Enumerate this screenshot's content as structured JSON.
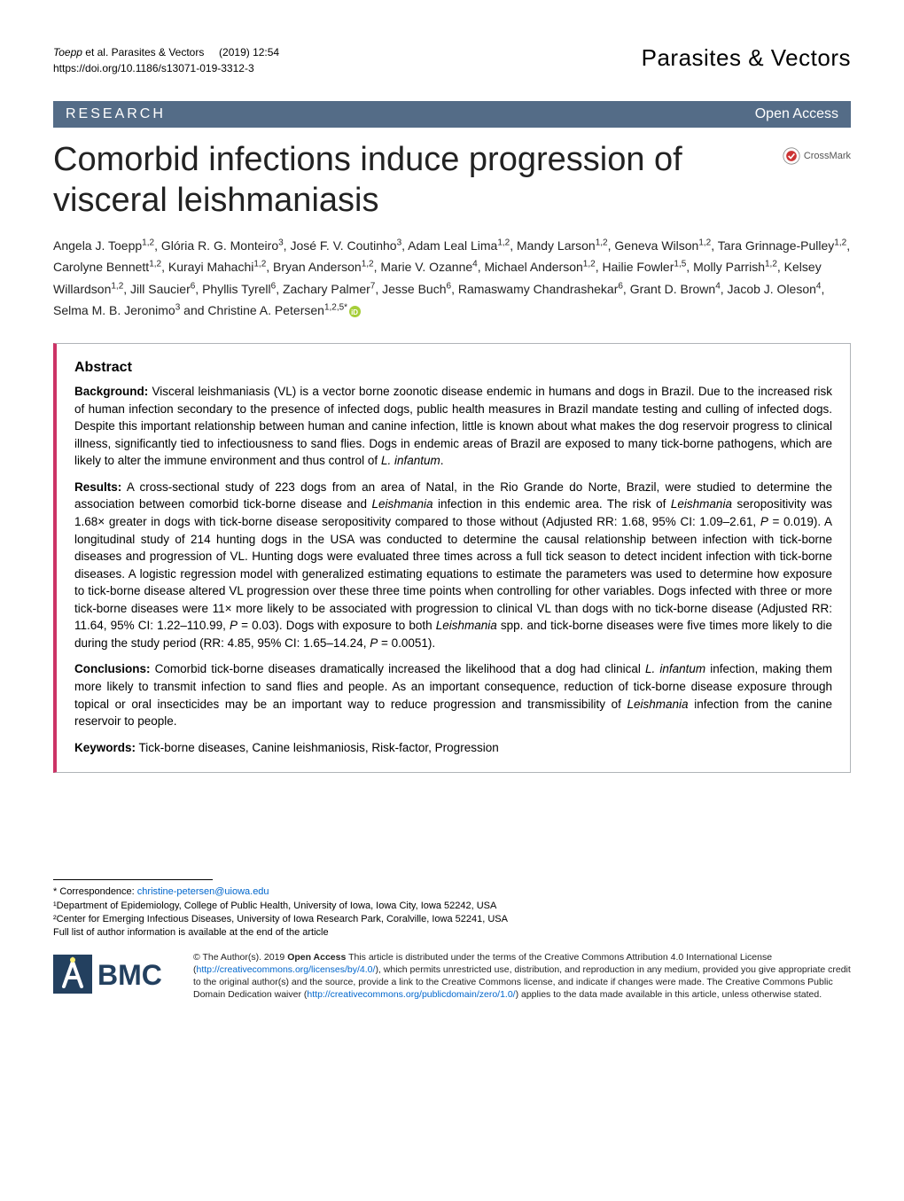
{
  "header": {
    "citation_authors": "Toepp",
    "citation_etal": "et al. Parasites & Vectors",
    "citation_year_vol": "(2019) 12:54",
    "doi": "https://doi.org/10.1186/s13071-019-3312-3",
    "journal": "Parasites & Vectors"
  },
  "banner": {
    "left": "RESEARCH",
    "right": "Open Access"
  },
  "title": "Comorbid infections induce progression of visceral leishmaniasis",
  "crossmark": "CrossMark",
  "authors_html": "Angela J. Toepp<sup>1,2</sup>, Glória R. G. Monteiro<sup>3</sup>, José F. V. Coutinho<sup>3</sup>, Adam Leal Lima<sup>1,2</sup>, Mandy Larson<sup>1,2</sup>, Geneva Wilson<sup>1,2</sup>, Tara Grinnage-Pulley<sup>1,2</sup>, Carolyne Bennett<sup>1,2</sup>, Kurayi Mahachi<sup>1,2</sup>, Bryan Anderson<sup>1,2</sup>, Marie V. Ozanne<sup>4</sup>, Michael Anderson<sup>1,2</sup>, Hailie Fowler<sup>1,5</sup>, Molly Parrish<sup>1,2</sup>, Kelsey Willardson<sup>1,2</sup>, Jill Saucier<sup>6</sup>, Phyllis Tyrell<sup>6</sup>, Zachary Palmer<sup>7</sup>, Jesse Buch<sup>6</sup>, Ramaswamy Chandrashekar<sup>6</sup>, Grant D. Brown<sup>4</sup>, Jacob J. Oleson<sup>4</sup>, Selma M. B. Jeronimo<sup>3</sup> and Christine A. Petersen<sup>1,2,5*</sup>",
  "abstract": {
    "heading": "Abstract",
    "background_label": "Background:",
    "background": "Visceral leishmaniasis (VL) is a vector borne zoonotic disease endemic in humans and dogs in Brazil. Due to the increased risk of human infection secondary to the presence of infected dogs, public health measures in Brazil mandate testing and culling of infected dogs. Despite this important relationship between human and canine infection, little is known about what makes the dog reservoir progress to clinical illness, significantly tied to infectiousness to sand flies. Dogs in endemic areas of Brazil are exposed to many tick-borne pathogens, which are likely to alter the immune environment and thus control of <em>L. infantum</em>.",
    "results_label": "Results:",
    "results": "A cross-sectional study of 223 dogs from an area of Natal, in the Rio Grande do Norte, Brazil, were studied to determine the association between comorbid tick-borne disease and <em>Leishmania</em> infection in this endemic area. The risk of <em>Leishmania</em> seropositivity was 1.68× greater in dogs with tick-borne disease seropositivity compared to those without (Adjusted RR: 1.68, 95% CI: 1.09–2.61, <em>P</em> = 0.019). A longitudinal study of 214 hunting dogs in the USA was conducted to determine the causal relationship between infection with tick-borne diseases and progression of VL. Hunting dogs were evaluated three times across a full tick season to detect incident infection with tick-borne diseases. A logistic regression model with generalized estimating equations to estimate the parameters was used to determine how exposure to tick-borne disease altered VL progression over these three time points when controlling for other variables. Dogs infected with three or more tick-borne diseases were 11× more likely to be associated with progression to clinical VL than dogs with no tick-borne disease (Adjusted RR: 11.64, 95% CI: 1.22–110.99, <em>P</em> = 0.03). Dogs with exposure to both <em>Leishmania</em> spp. and tick-borne diseases were five times more likely to die during the study period (RR: 4.85, 95% CI: 1.65–14.24, <em>P</em> = 0.0051).",
    "conclusions_label": "Conclusions:",
    "conclusions": "Comorbid tick-borne diseases dramatically increased the likelihood that a dog had clinical <em>L. infantum</em> infection, making them more likely to transmit infection to sand flies and people. As an important consequence, reduction of tick-borne disease exposure through topical or oral insecticides may be an important way to reduce progression and transmissibility of <em>Leishmania</em> infection from the canine reservoir to people.",
    "keywords_label": "Keywords:",
    "keywords": "Tick-borne diseases, Canine leishmaniosis, Risk-factor, Progression"
  },
  "footer": {
    "corr_label": "* Correspondence:",
    "corr_email": "christine-petersen@uiowa.edu",
    "aff1": "¹Department of Epidemiology, College of Public Health, University of Iowa, Iowa City, Iowa 52242, USA",
    "aff2": "²Center for Emerging Infectious Diseases, University of Iowa Research Park, Coralville, Iowa 52241, USA",
    "aff_note": "Full list of author information is available at the end of the article",
    "license_part1": "© The Author(s). 2019 ",
    "license_bold": "Open Access",
    "license_part2": " This article is distributed under the terms of the Creative Commons Attribution 4.0 International License (",
    "license_link1": "http://creativecommons.org/licenses/by/4.0/",
    "license_part3": "), which permits unrestricted use, distribution, and reproduction in any medium, provided you give appropriate credit to the original author(s) and the source, provide a link to the Creative Commons license, and indicate if changes were made. The Creative Commons Public Domain Dedication waiver (",
    "license_link2": "http://creativecommons.org/publicdomain/zero/1.0/",
    "license_part4": ") applies to the data made available in this article, unless otherwise stated."
  },
  "colors": {
    "banner_bg": "#546c87",
    "accent_border": "#cc3366",
    "link": "#0066cc",
    "bmc_box": "#23405f"
  }
}
